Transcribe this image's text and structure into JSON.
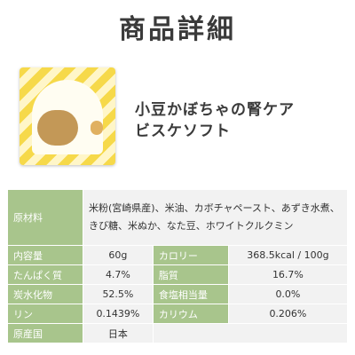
{
  "page": {
    "title": "商品詳細"
  },
  "product": {
    "name_line1": "小豆かぼちゃの腎ケア",
    "name_line2": "ビスケソフト"
  },
  "details": {
    "ingredients_label": "原材料",
    "ingredients_line1": "米粉(宮崎県産)、米油、カボチャペースト、あずき水煮、",
    "ingredients_line2": "きび糖、米ぬか、なた豆、ホワイトクルクミン",
    "rows": [
      {
        "label1": "内容量",
        "value1": "60g",
        "label2": "カロリー",
        "value2": "368.5kcal / 100g"
      },
      {
        "label1": "たんぱく質",
        "value1": "4.7%",
        "label2": "脂質",
        "value2": "16.7%"
      },
      {
        "label1": "炭水化物",
        "value1": "52.5%",
        "label2": "食塩相当量",
        "value2": "0.0%"
      },
      {
        "label1": "リン",
        "value1": "0.1439%",
        "label2": "カリウム",
        "value2": "0.206%"
      }
    ],
    "origin_label": "原産国",
    "origin_value": "日本"
  }
}
